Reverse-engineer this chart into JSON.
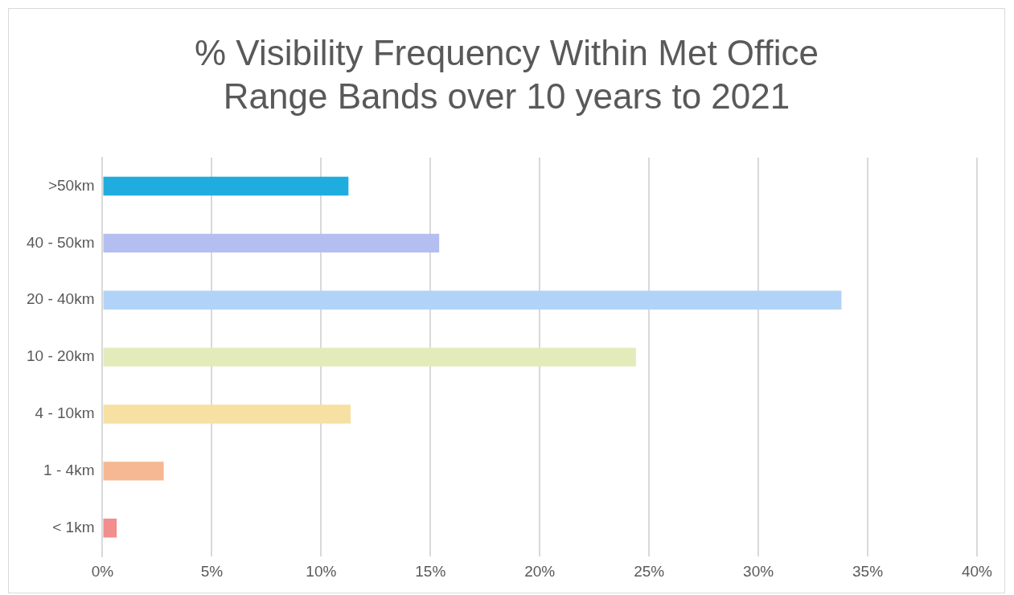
{
  "chart_data": {
    "type": "bar",
    "orientation": "horizontal",
    "title": "% Visibility Frequency Within Met Office Range Bands over 10 years to 2021",
    "categories": [
      ">50km",
      "40 - 50km",
      "20 - 40km",
      "10 - 20km",
      "4 - 10km",
      "1 - 4km",
      "< 1km"
    ],
    "values": [
      11.25,
      15.4,
      33.8,
      24.4,
      11.35,
      2.8,
      0.65
    ],
    "colors": [
      "#1fade0",
      "#b4bef0",
      "#b1d3f7",
      "#e4ebbb",
      "#f6e0a2",
      "#f5b892",
      "#f38e8e"
    ],
    "xlim": [
      0,
      40
    ],
    "xticks": [
      {
        "value": 0,
        "label": "0%"
      },
      {
        "value": 5,
        "label": "5%"
      },
      {
        "value": 10,
        "label": "10%"
      },
      {
        "value": 15,
        "label": "15%"
      },
      {
        "value": 20,
        "label": "20%"
      },
      {
        "value": 25,
        "label": "25%"
      },
      {
        "value": 30,
        "label": "30%"
      },
      {
        "value": 35,
        "label": "35%"
      },
      {
        "value": 40,
        "label": "40%"
      }
    ],
    "grid": "x",
    "legend": false
  }
}
